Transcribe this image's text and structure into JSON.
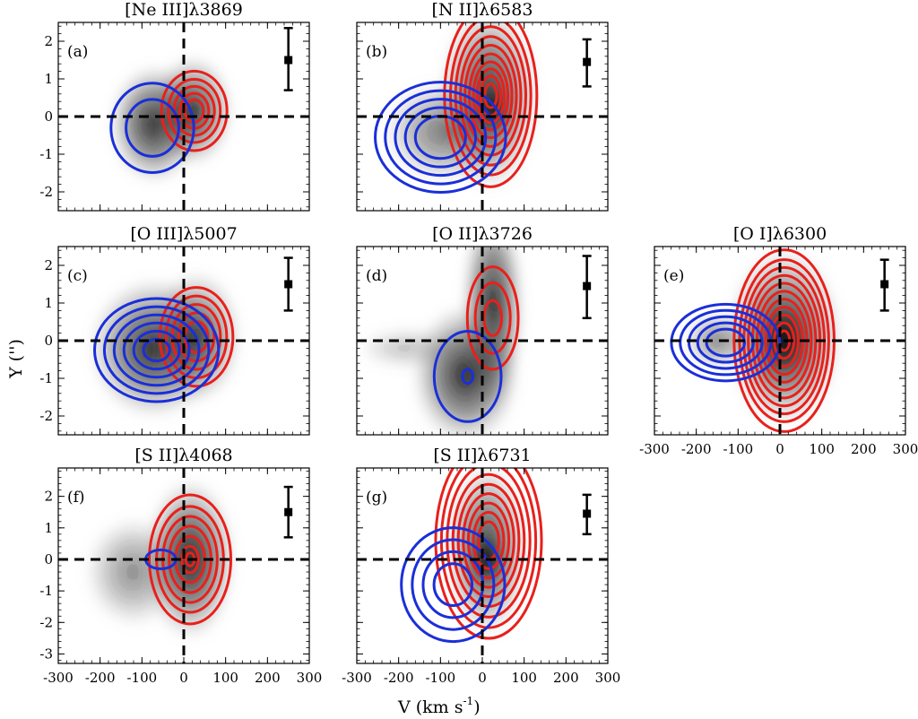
{
  "figure": {
    "xlabel": "V (km s",
    "xlabel_sup": "-1",
    "xlabel_end": ")",
    "ylabel": "Y ('')"
  },
  "chart_data": [
    {
      "type": "contour",
      "label": "(a)",
      "title": "[Ne III]λ3869",
      "xlim": [
        -300,
        300
      ],
      "ylim": [
        -2.5,
        2.5
      ],
      "xticks": [
        -300,
        -200,
        -100,
        0,
        100,
        200,
        300
      ],
      "yticks": [
        -2,
        -1,
        0,
        1,
        2
      ],
      "show_x_tick_labels": false,
      "show_y_tick_labels": true,
      "error_bar": {
        "x": 250,
        "center": 1.5,
        "low": 0.7,
        "high": 2.35
      },
      "gray": [
        {
          "vx": -70,
          "vy": -0.2,
          "sx": 55,
          "sy": 0.8,
          "a": 0.85
        },
        {
          "vx": 20,
          "vy": 0.15,
          "sx": 50,
          "sy": 0.75,
          "a": 0.8
        }
      ],
      "red": {
        "vx": 25,
        "vy": 0.15,
        "sx": 46,
        "sy": 0.62,
        "levels": [
          1.7,
          1.35,
          1.05,
          0.75,
          0.48
        ]
      },
      "blue": {
        "vx": -75,
        "vy": -0.3,
        "sx": 60,
        "sy": 0.72,
        "levels": [
          1.65,
          1.05
        ]
      }
    },
    {
      "type": "contour",
      "label": "(b)",
      "title": "[N II]λ6583",
      "xlim": [
        -300,
        300
      ],
      "ylim": [
        -2.5,
        2.5
      ],
      "xticks": [
        -300,
        -200,
        -100,
        0,
        100,
        200,
        300
      ],
      "yticks": [
        -2,
        -1,
        0,
        1,
        2
      ],
      "show_x_tick_labels": false,
      "show_y_tick_labels": false,
      "error_bar": {
        "x": 250,
        "center": 1.45,
        "low": 0.8,
        "high": 2.05
      },
      "gray": [
        {
          "vx": 15,
          "vy": 0.5,
          "sx": 60,
          "sy": 1.25,
          "a": 0.85
        },
        {
          "vx": -90,
          "vy": -0.4,
          "sx": 75,
          "sy": 0.7,
          "a": 0.55
        },
        {
          "vx": 25,
          "vy": 0.2,
          "sx": 25,
          "sy": 0.4,
          "a": 1.0
        }
      ],
      "red": {
        "vx": 20,
        "vy": 0.55,
        "sx": 48,
        "sy": 1.05,
        "levels": [
          2.3,
          2.0,
          1.75,
          1.5,
          1.28,
          1.06,
          0.86,
          0.68,
          0.5,
          0.3
        ]
      },
      "blue": {
        "vx": -100,
        "vy": -0.55,
        "sx": 80,
        "sy": 0.75,
        "levels": [
          1.95,
          1.65,
          1.35,
          1.05,
          0.75
        ]
      }
    },
    {
      "type": "contour",
      "label": "(c)",
      "title": "[O III]λ5007",
      "xlim": [
        -300,
        300
      ],
      "ylim": [
        -2.5,
        2.5
      ],
      "xticks": [
        -300,
        -200,
        -100,
        0,
        100,
        200,
        300
      ],
      "yticks": [
        -2,
        -1,
        0,
        1,
        2
      ],
      "show_x_tick_labels": false,
      "show_y_tick_labels": true,
      "error_bar": {
        "x": 250,
        "center": 1.5,
        "low": 0.8,
        "high": 2.2
      },
      "gray": [
        {
          "vx": -70,
          "vy": -0.2,
          "sx": 80,
          "sy": 0.95,
          "a": 0.85
        },
        {
          "vx": 30,
          "vy": 0.1,
          "sx": 55,
          "sy": 0.9,
          "a": 0.7
        }
      ],
      "red": {
        "vx": 30,
        "vy": 0.1,
        "sx": 50,
        "sy": 0.75,
        "levels": [
          1.75,
          1.45,
          1.15,
          0.85,
          0.55
        ]
      },
      "blue": {
        "vx": -65,
        "vy": -0.25,
        "sx": 78,
        "sy": 0.72,
        "levels": [
          1.9,
          1.6,
          1.3,
          1.0,
          0.7,
          0.4
        ]
      }
    },
    {
      "type": "contour",
      "label": "(d)",
      "title": "[O II]λ3726",
      "xlim": [
        -300,
        300
      ],
      "ylim": [
        -2.5,
        2.5
      ],
      "xticks": [
        -300,
        -200,
        -100,
        0,
        100,
        200,
        300
      ],
      "yticks": [
        -2,
        -1,
        0,
        1,
        2
      ],
      "show_x_tick_labels": false,
      "show_y_tick_labels": false,
      "error_bar": {
        "x": 250,
        "center": 1.45,
        "low": 0.6,
        "high": 2.25
      },
      "gray": [
        {
          "vx": 25,
          "vy": 0.9,
          "sx": 38,
          "sy": 1.4,
          "a": 0.85
        },
        {
          "vx": -40,
          "vy": -0.9,
          "sx": 65,
          "sy": 0.95,
          "a": 0.85
        },
        {
          "vx": -180,
          "vy": -0.2,
          "sx": 60,
          "sy": 0.3,
          "a": 0.25
        }
      ],
      "red": {
        "vx": 25,
        "vy": 0.6,
        "sx": 38,
        "sy": 0.85,
        "levels": [
          1.6,
          1.1,
          0.55
        ]
      },
      "blue": {
        "vx": -35,
        "vy": -0.95,
        "sx": 50,
        "sy": 0.75,
        "levels": [
          1.6,
          0.25
        ]
      }
    },
    {
      "type": "contour",
      "label": "(e)",
      "title": "[O I]λ6300",
      "xlim": [
        -300,
        300
      ],
      "ylim": [
        -2.5,
        2.5
      ],
      "xticks": [
        -300,
        -200,
        -100,
        0,
        100,
        200,
        300
      ],
      "yticks": [
        -2,
        -1,
        0,
        1,
        2
      ],
      "show_x_tick_labels": true,
      "show_y_tick_labels": false,
      "error_bar": {
        "x": 250,
        "center": 1.5,
        "low": 0.8,
        "high": 2.15
      },
      "gray": [
        {
          "vx": 10,
          "vy": 0.1,
          "sx": 70,
          "sy": 1.2,
          "a": 0.9
        },
        {
          "vx": 10,
          "vy": 0.0,
          "sx": 35,
          "sy": 0.6,
          "a": 1.0
        },
        {
          "vx": -150,
          "vy": 0.0,
          "sx": 40,
          "sy": 0.4,
          "a": 0.5
        }
      ],
      "red": {
        "vx": 10,
        "vy": 0.0,
        "sx": 52,
        "sy": 1.05,
        "levels": [
          2.3,
          2.05,
          1.85,
          1.65,
          1.45,
          1.25,
          1.05,
          0.85,
          0.65,
          0.45,
          0.25
        ]
      },
      "blue": {
        "vx": -130,
        "vy": -0.05,
        "sx": 70,
        "sy": 0.55,
        "levels": [
          1.85,
          1.55,
          1.25,
          0.95,
          0.65
        ]
      }
    },
    {
      "type": "contour",
      "label": "(f)",
      "title": "[S II]λ4068",
      "xlim": [
        -300,
        300
      ],
      "ylim": [
        -3.3,
        2.9
      ],
      "xticks": [
        -300,
        -200,
        -100,
        0,
        100,
        200,
        300
      ],
      "yticks": [
        -3,
        -2,
        -1,
        0,
        1,
        2
      ],
      "show_x_tick_labels": true,
      "show_y_tick_labels": true,
      "error_bar": {
        "x": 250,
        "center": 1.5,
        "low": 0.7,
        "high": 2.3
      },
      "gray": [
        {
          "vx": 15,
          "vy": 0.0,
          "sx": 55,
          "sy": 1.3,
          "a": 0.9
        },
        {
          "vx": -120,
          "vy": -0.4,
          "sx": 60,
          "sy": 0.9,
          "a": 0.45
        }
      ],
      "red": {
        "vx": 15,
        "vy": 0.0,
        "sx": 50,
        "sy": 1.05,
        "levels": [
          1.95,
          1.6,
          1.3,
          1.0,
          0.7,
          0.4,
          0.2
        ]
      },
      "blue": {
        "vx": -55,
        "vy": 0.0,
        "sx": 30,
        "sy": 0.25,
        "levels": [
          1.2
        ]
      }
    },
    {
      "type": "contour",
      "label": "(g)",
      "title": "[S II]λ6731",
      "xlim": [
        -300,
        300
      ],
      "ylim": [
        -3.3,
        2.9
      ],
      "xticks": [
        -300,
        -200,
        -100,
        0,
        100,
        200,
        300
      ],
      "yticks": [
        -3,
        -2,
        -1,
        0,
        1,
        2
      ],
      "show_x_tick_labels": true,
      "show_y_tick_labels": false,
      "error_bar": {
        "x": 250,
        "center": 1.45,
        "low": 0.8,
        "high": 2.05
      },
      "gray": [
        {
          "vx": 10,
          "vy": 0.3,
          "sx": 50,
          "sy": 1.4,
          "a": 0.8
        },
        {
          "vx": 10,
          "vy": 0.0,
          "sx": 25,
          "sy": 0.5,
          "a": 1.0
        }
      ],
      "red": {
        "vx": 15,
        "vy": 0.6,
        "sx": 55,
        "sy": 1.35,
        "levels": [
          2.3,
          2.05,
          1.8,
          1.55,
          1.32,
          1.1,
          0.88,
          0.66,
          0.44
        ]
      },
      "blue": {
        "vx": -70,
        "vy": -0.8,
        "sx": 65,
        "sy": 0.95,
        "levels": [
          1.9,
          1.5,
          1.1,
          0.7
        ]
      }
    }
  ]
}
